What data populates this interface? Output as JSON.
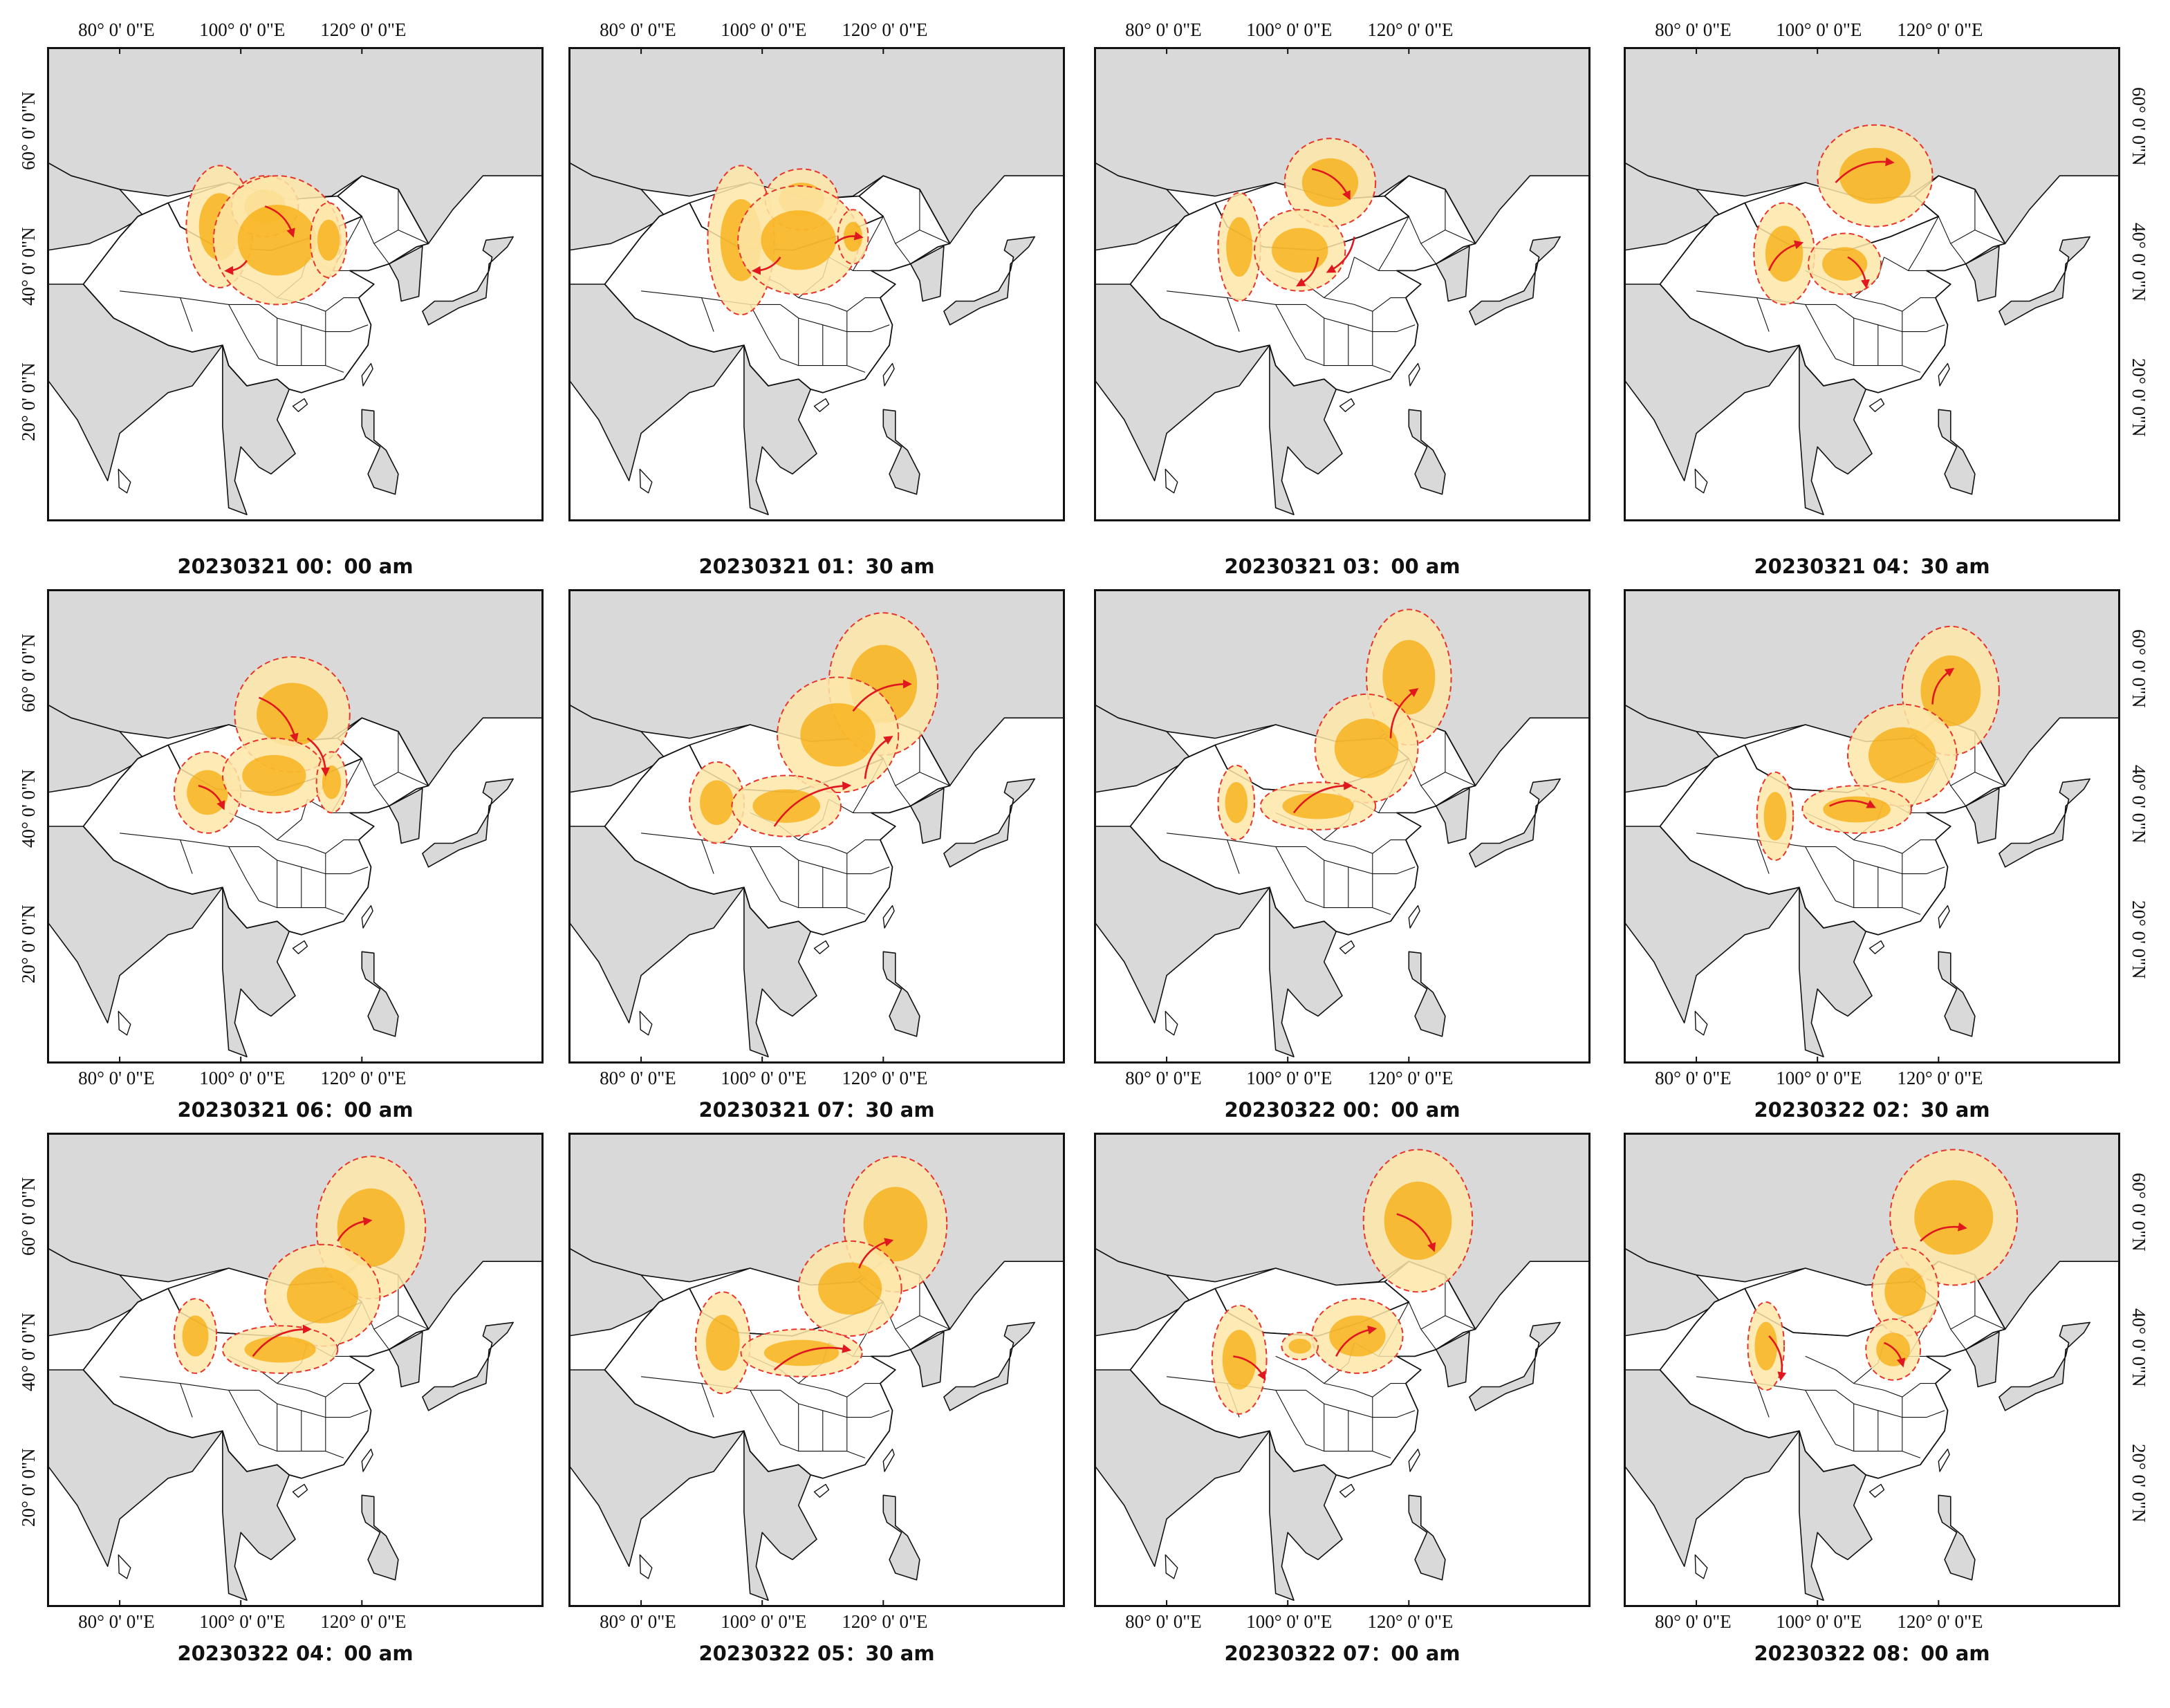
{
  "lon_labels": [
    "80° 0' 0\"E",
    "100° 0' 0\"E",
    "120° 0' 0\"E"
  ],
  "lat_labels": [
    "20° 0' 0\"N",
    "40° 0' 0\"N",
    "60° 0' 0\"N"
  ],
  "colors": {
    "land": "#ffffff",
    "foreign": "#d9d9d9",
    "dust_light": "#fde6a8",
    "dust_heavy": "#f7a800",
    "envelope": "#e8352b",
    "arrow": "#e0171f",
    "border": "#111111"
  },
  "panels": [
    {
      "caption": "20230321  00：00 am",
      "dust": [
        [
          -0.85,
          0.55,
          0.55,
          0.9
        ],
        [
          -0.1,
          0.85,
          0.55,
          0.45
        ],
        [
          0.1,
          0.35,
          1.05,
          0.95
        ],
        [
          0.95,
          0.35,
          0.3,
          0.55
        ]
      ],
      "arrows": [
        [
          [
            -0.1,
            0.85
          ],
          [
            0.35,
            0.45
          ]
        ],
        [
          [
            -0.4,
            0.05
          ],
          [
            -0.7,
            -0.1
          ]
        ]
      ]
    },
    {
      "caption": "20230321  01：30 am",
      "dust": [
        [
          -0.85,
          0.35,
          0.55,
          1.1
        ],
        [
          0.15,
          0.95,
          0.6,
          0.45
        ],
        [
          0.1,
          0.35,
          1.0,
          0.8
        ],
        [
          1.0,
          0.4,
          0.25,
          0.4
        ]
      ],
      "arrows": [
        [
          [
            -0.2,
            0.1
          ],
          [
            -0.6,
            -0.1
          ]
        ],
        [
          [
            0.7,
            0.3
          ],
          [
            1.1,
            0.4
          ]
        ]
      ]
    },
    {
      "caption": "20230321  03：00 am",
      "dust": [
        [
          -1.3,
          0.25,
          0.35,
          0.8
        ],
        [
          0.2,
          1.2,
          0.75,
          0.65
        ],
        [
          -0.3,
          0.2,
          0.75,
          0.6
        ]
      ],
      "arrows": [
        [
          [
            -0.1,
            1.4
          ],
          [
            0.5,
            1.0
          ]
        ],
        [
          [
            0.0,
            0.1
          ],
          [
            -0.3,
            -0.3
          ]
        ],
        [
          [
            0.6,
            0.4
          ],
          [
            0.2,
            -0.1
          ]
        ]
      ]
    },
    {
      "caption": "20230321  04：30 am",
      "dust": [
        [
          -1.05,
          0.15,
          0.5,
          0.75
        ],
        [
          0.45,
          1.3,
          0.95,
          0.75
        ],
        [
          -0.05,
          0.0,
          0.6,
          0.45
        ]
      ],
      "arrows": [
        [
          [
            -0.2,
            1.2
          ],
          [
            0.7,
            1.5
          ]
        ],
        [
          [
            -1.3,
            -0.1
          ],
          [
            -0.8,
            0.3
          ]
        ],
        [
          [
            0.0,
            0.1
          ],
          [
            0.3,
            -0.3
          ]
        ]
      ]
    },
    {
      "caption": "20230321  06：00 am",
      "dust": [
        [
          -1.05,
          0.2,
          0.55,
          0.6
        ],
        [
          0.35,
          1.35,
          0.95,
          0.85
        ],
        [
          0.05,
          0.45,
          0.85,
          0.55
        ],
        [
          1.0,
          0.35,
          0.25,
          0.45
        ]
      ],
      "arrows": [
        [
          [
            -0.2,
            1.6
          ],
          [
            0.4,
            1.0
          ]
        ],
        [
          [
            0.6,
            1.0
          ],
          [
            0.9,
            0.5
          ]
        ],
        [
          [
            -1.2,
            0.3
          ],
          [
            -0.8,
            0.0
          ]
        ]
      ]
    },
    {
      "caption": "20230321  07：30 am",
      "dust": [
        [
          -1.25,
          0.05,
          0.45,
          0.6
        ],
        [
          1.5,
          1.8,
          0.9,
          1.05
        ],
        [
          0.75,
          1.05,
          1.0,
          0.85
        ],
        [
          -0.1,
          0.0,
          0.9,
          0.45
        ]
      ],
      "arrows": [
        [
          [
            -0.3,
            -0.3
          ],
          [
            0.9,
            0.3
          ]
        ],
        [
          [
            1.0,
            1.4
          ],
          [
            1.9,
            1.8
          ]
        ],
        [
          [
            1.2,
            0.4
          ],
          [
            1.6,
            1.0
          ]
        ]
      ]
    },
    {
      "caption": "20230322  00：00 am",
      "dust": [
        [
          -1.35,
          0.05,
          0.3,
          0.55
        ],
        [
          1.5,
          1.9,
          0.7,
          1.0
        ],
        [
          0.8,
          0.85,
          0.85,
          0.8
        ],
        [
          0.0,
          0.0,
          0.95,
          0.35
        ]
      ],
      "arrows": [
        [
          [
            -0.4,
            -0.1
          ],
          [
            0.5,
            0.3
          ]
        ],
        [
          [
            1.2,
            1.0
          ],
          [
            1.6,
            1.7
          ]
        ]
      ]
    },
    {
      "caption": "20230322  02：30 am",
      "dust": [
        [
          -1.2,
          -0.15,
          0.3,
          0.65
        ],
        [
          1.7,
          1.7,
          0.8,
          0.95
        ],
        [
          0.9,
          0.75,
          0.9,
          0.75
        ],
        [
          0.15,
          -0.05,
          0.9,
          0.35
        ]
      ],
      "arrows": [
        [
          [
            -0.3,
            0.0
          ],
          [
            0.4,
            0.0
          ]
        ],
        [
          [
            1.4,
            1.5
          ],
          [
            1.7,
            2.0
          ]
        ]
      ]
    },
    {
      "caption": "20230322  04：00 am",
      "dust": [
        [
          -1.25,
          0.2,
          0.35,
          0.55
        ],
        [
          1.65,
          1.8,
          0.9,
          1.05
        ],
        [
          0.85,
          0.8,
          0.95,
          0.75
        ],
        [
          0.15,
          0.0,
          0.95,
          0.35
        ]
      ],
      "arrows": [
        [
          [
            -0.3,
            -0.1
          ],
          [
            0.6,
            0.3
          ]
        ],
        [
          [
            1.1,
            1.6
          ],
          [
            1.6,
            1.9
          ]
        ]
      ]
    },
    {
      "caption": "20230322  05：30 am",
      "dust": [
        [
          -1.15,
          0.1,
          0.45,
          0.75
        ],
        [
          1.7,
          1.85,
          0.85,
          1.0
        ],
        [
          0.95,
          0.9,
          0.85,
          0.7
        ],
        [
          0.15,
          -0.05,
          1.0,
          0.35
        ]
      ],
      "arrows": [
        [
          [
            -0.3,
            -0.3
          ],
          [
            0.9,
            0.0
          ]
        ],
        [
          [
            1.1,
            1.2
          ],
          [
            1.6,
            1.6
          ]
        ]
      ]
    },
    {
      "caption": "20230322  07：00 am",
      "dust": [
        [
          -1.3,
          -0.15,
          0.45,
          0.8
        ],
        [
          1.65,
          1.9,
          0.9,
          1.05
        ],
        [
          0.65,
          0.2,
          0.75,
          0.55
        ],
        [
          -0.3,
          0.05,
          0.3,
          0.2
        ]
      ],
      "arrows": [
        [
          [
            -1.4,
            -0.1
          ],
          [
            -0.9,
            -0.4
          ]
        ],
        [
          [
            0.3,
            -0.1
          ],
          [
            0.9,
            0.3
          ]
        ],
        [
          [
            1.3,
            2.0
          ],
          [
            1.9,
            1.5
          ]
        ]
      ]
    },
    {
      "caption": "20230322  08：00 am",
      "dust": [
        [
          -1.35,
          0.05,
          0.3,
          0.65
        ],
        [
          1.75,
          1.95,
          1.05,
          1.0
        ],
        [
          0.95,
          0.85,
          0.55,
          0.65
        ],
        [
          0.75,
          0.0,
          0.45,
          0.45
        ]
      ],
      "arrows": [
        [
          [
            -1.3,
            0.2
          ],
          [
            -1.1,
            -0.4
          ]
        ],
        [
          [
            1.2,
            1.6
          ],
          [
            1.9,
            1.8
          ]
        ],
        [
          [
            0.6,
            0.1
          ],
          [
            0.9,
            -0.2
          ]
        ]
      ]
    }
  ]
}
